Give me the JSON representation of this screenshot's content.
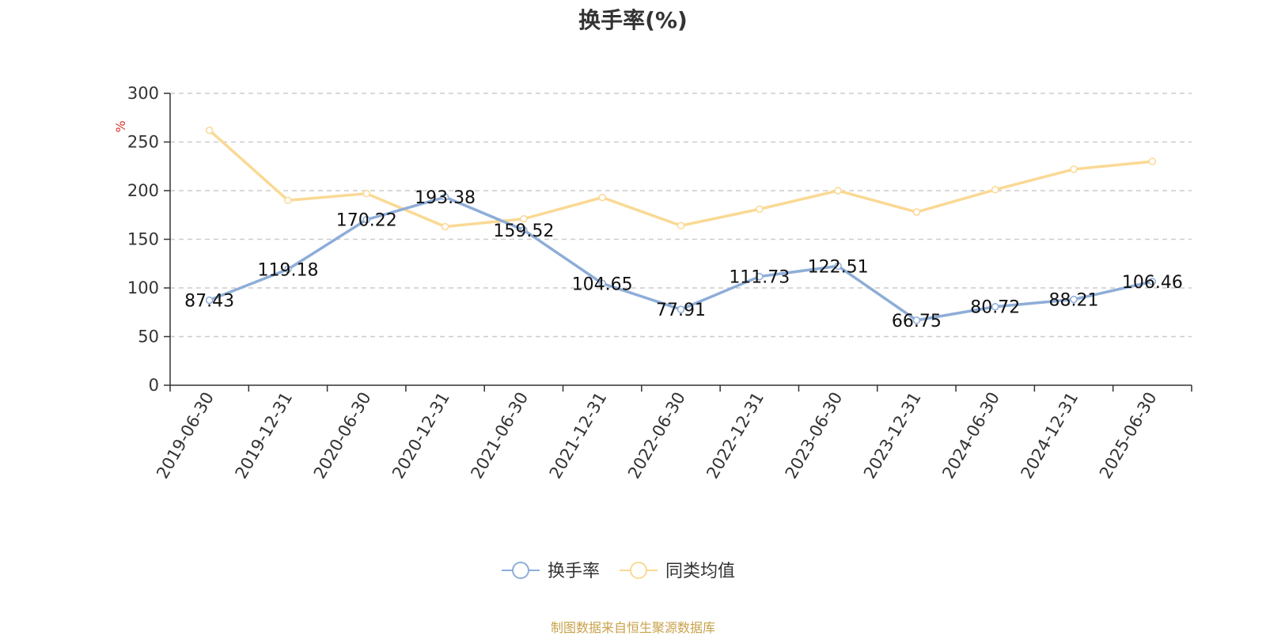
{
  "title": "换手率(%)",
  "source": "制图数据来自恒生聚源数据库",
  "colors": {
    "series_1": "#8eadd8",
    "series_2": "#fad994",
    "unit": "#e03030",
    "grid": "#cccccc",
    "axis": "#333333"
  },
  "chart_data": {
    "type": "line",
    "title": "换手率(%)",
    "ylabel": "%",
    "xlabel": "",
    "ylim": [
      0,
      300
    ],
    "yticks": [
      0,
      50,
      100,
      150,
      200,
      250,
      300
    ],
    "grid": true,
    "legend_position": "bottom-center",
    "categories": [
      "2019-06-30",
      "2019-12-31",
      "2020-06-30",
      "2020-12-31",
      "2021-06-30",
      "2021-12-31",
      "2022-06-30",
      "2022-12-31",
      "2023-06-30",
      "2023-12-31",
      "2024-06-30",
      "2024-12-31",
      "2025-06-30"
    ],
    "series": [
      {
        "name": "换手率",
        "values": [
          87.43,
          119.18,
          170.22,
          193.38,
          159.52,
          104.65,
          77.91,
          111.73,
          122.51,
          66.75,
          80.72,
          88.21,
          106.46
        ],
        "labels": [
          "87.43",
          "119.18",
          "170.22",
          "193.38",
          "159.52",
          "104.65",
          "77.91",
          "111.73",
          "122.51",
          "66.75",
          "80.72",
          "88.21",
          "106.46"
        ]
      },
      {
        "name": "同类均值",
        "values": [
          262,
          190,
          197,
          163,
          171,
          193,
          164,
          181,
          200,
          178,
          201,
          222,
          230
        ]
      }
    ]
  }
}
